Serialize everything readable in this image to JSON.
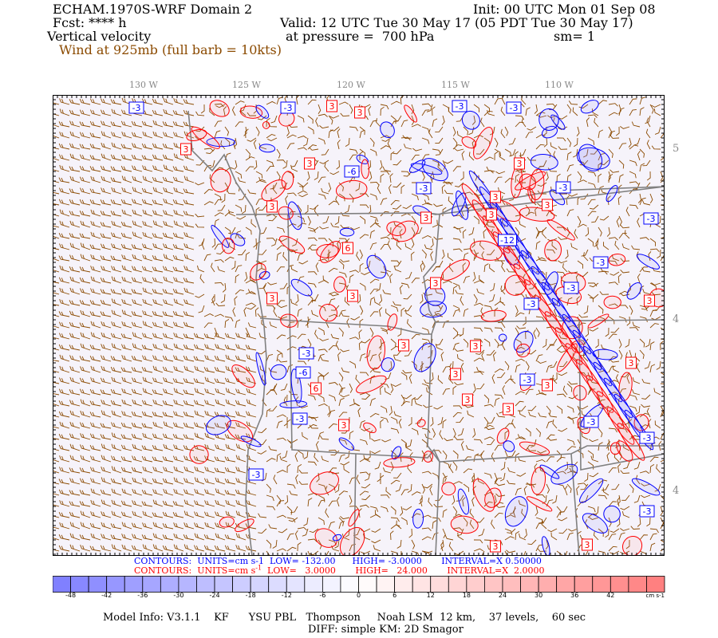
{
  "header": {
    "title": "ECHAM.1970S-WRF Domain 2",
    "init": "Init: 00 UTC Mon 01 Sep 08",
    "fcst": "Fcst: **** h",
    "valid": "Valid: 12 UTC Tue 30 May 17 (05 PDT Tue 30 May 17)",
    "field": "Vertical velocity",
    "pressure": "at pressure =  700 hPa",
    "smoothing": "sm= 1",
    "wind": "Wind at 925mb (full barb = 10kts)"
  },
  "map": {
    "lon_labels": [
      "130 W",
      "125 W",
      "120 W",
      "115 W",
      "110 W"
    ],
    "lat_labels": [
      "5",
      "4",
      "4"
    ],
    "contour_labels_negative": [
      "-3",
      "-3",
      "-6",
      "-3",
      "-3",
      "-3",
      "-3",
      "-12",
      "-3",
      "-3",
      "-3",
      "-3",
      "-3",
      "-6",
      "-3",
      "-3",
      "-3",
      "-3",
      "-3",
      "-3"
    ],
    "contour_labels_positive": [
      "3",
      "3",
      "3",
      "3",
      "3",
      "3",
      "6",
      "3",
      "3",
      "3",
      "3",
      "3",
      "3",
      "3",
      "3",
      "3",
      "6",
      "3",
      "3",
      "3",
      "3",
      "3",
      "3",
      "3",
      "3",
      "3"
    ],
    "background_color": "#f6f3fa",
    "positive_color": "#ff0000",
    "negative_color": "#0000ff",
    "barb_color": "#8b4a00",
    "border_color": "#808080"
  },
  "contours_info": {
    "negative": "CONTOURS:  UNITS=cm s-1  LOW= -132.00      HIGH= -3.0000       INTERVAL=X 0.50000",
    "positive": "CONTOURS:  UNITS=cm s",
    "positive_sup": "-1",
    "positive_rest": "  LOW=   3.0000       HIGH=   24.000       INTERVAL=X  2.0000"
  },
  "colorbar": {
    "labels": [
      "-48",
      "-42",
      "-36",
      "-30",
      "-24",
      "-18",
      "-12",
      "-6",
      "0",
      "6",
      "12",
      "18",
      "24",
      "30",
      "36",
      "42"
    ],
    "units": "cm s-1",
    "min_color": "#8080ff",
    "max_color": "#ff8080"
  },
  "footer": {
    "line1": "Model Info: V3.1.1    KF      YSU PBL   Thompson     Noah LSM  12 km,    37 levels,    60 sec",
    "line2": "DIFF: simple KM: 2D Smagor"
  }
}
